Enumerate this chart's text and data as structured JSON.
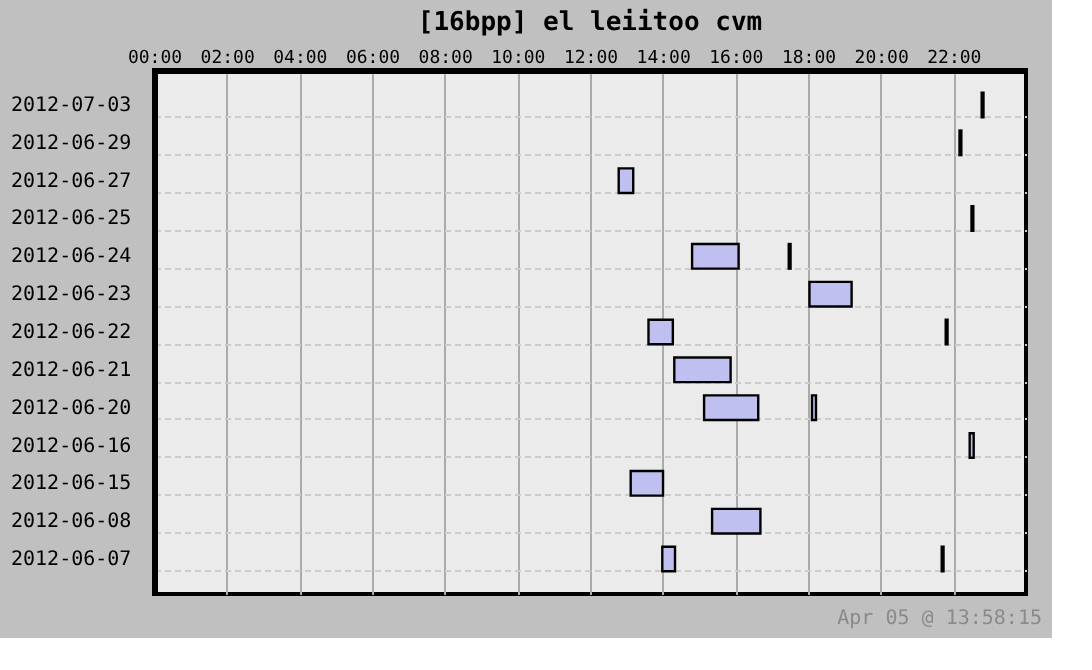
{
  "chart_data": {
    "type": "bar",
    "orientation": "horizontal",
    "title": "[16bpp] el leiitoo cvm",
    "categories": [
      "2012-07-03",
      "2012-06-29",
      "2012-06-27",
      "2012-06-25",
      "2012-06-24",
      "2012-06-23",
      "2012-06-22",
      "2012-06-21",
      "2012-06-20",
      "2012-06-16",
      "2012-06-15",
      "2012-06-08",
      "2012-06-07"
    ],
    "series": [
      {
        "color": "#c0c0f0",
        "base": [
          22.78,
          22.17,
          12.79,
          22.5,
          14.81,
          18.04,
          13.61,
          14.32,
          15.14,
          22.45,
          13.12,
          15.36,
          13.99
        ],
        "values": [
          0.05,
          0.05,
          0.4,
          0.05,
          1.28,
          1.16,
          0.67,
          1.55,
          1.49,
          0.11,
          0.89,
          1.33,
          0.35
        ]
      },
      {
        "color": "#c0c0f0",
        "base": [
          null,
          null,
          null,
          null,
          17.47,
          null,
          21.79,
          null,
          18.11,
          null,
          null,
          null,
          21.68
        ],
        "values": [
          null,
          null,
          null,
          null,
          0.05,
          null,
          0.05,
          null,
          0.11,
          null,
          null,
          null,
          0.05
        ]
      }
    ],
    "xlim": [
      0,
      24
    ],
    "xticks": [
      {
        "value": 0,
        "label": "00:00"
      },
      {
        "value": 2,
        "label": "02:00"
      },
      {
        "value": 4,
        "label": "04:00"
      },
      {
        "value": 6,
        "label": "06:00"
      },
      {
        "value": 8,
        "label": "08:00"
      },
      {
        "value": 10,
        "label": "10:00"
      },
      {
        "value": 12,
        "label": "12:00"
      },
      {
        "value": 14,
        "label": "14:00"
      },
      {
        "value": 16,
        "label": "16:00"
      },
      {
        "value": 18,
        "label": "18:00"
      },
      {
        "value": 20,
        "label": "20:00"
      },
      {
        "value": 22,
        "label": "22:00"
      }
    ],
    "grid": true,
    "legend": false,
    "annotations": [
      "Apr 05 @ 13:58:15"
    ]
  }
}
